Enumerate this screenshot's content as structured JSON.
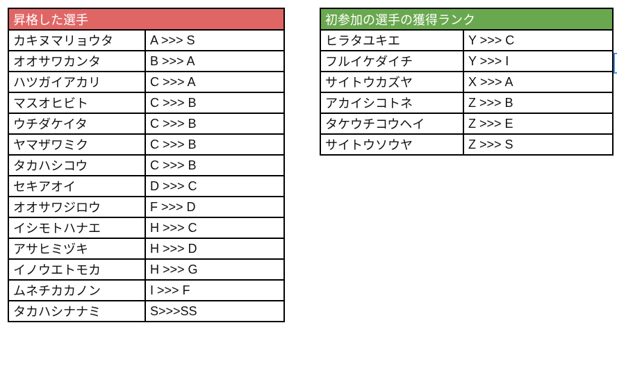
{
  "promoted": {
    "title": "昇格した選手",
    "header_color": "#e06666",
    "rows": [
      [
        "カキヌマリョウタ",
        "A >>> S"
      ],
      [
        "オオサワカンタ",
        "B >>> A"
      ],
      [
        "ハツガイアカリ",
        "C >>> A"
      ],
      [
        "マスオヒビト",
        "C >>> B"
      ],
      [
        "ウチダケイタ",
        "C >>> B"
      ],
      [
        "ヤマザワミク",
        "C >>> B"
      ],
      [
        "タカハシコウ",
        "C >>> B"
      ],
      [
        "セキアオイ",
        "D >>> C"
      ],
      [
        "オオサワジロウ",
        "F >>> D"
      ],
      [
        "イシモトハナエ",
        "H >>> C"
      ],
      [
        "アサヒミヅキ",
        "H >>> D"
      ],
      [
        "イノウエトモカ",
        "H >>> G"
      ],
      [
        "ムネチカカノン",
        "I >>> F"
      ],
      [
        "タカハシナナミ",
        "S>>>SS"
      ]
    ]
  },
  "newcomers": {
    "title": "初参加の選手の獲得ランク",
    "header_color": "#6aa84f",
    "rows": [
      [
        "ヒラタユキエ",
        "Y >>> C"
      ],
      [
        "フルイケダイチ",
        "Y >>> I"
      ],
      [
        "サイトウカズヤ",
        "X >>> A"
      ],
      [
        "アカイシコトネ",
        "Z >>> B"
      ],
      [
        "タケウチコウヘイ",
        "Z >>> E"
      ],
      [
        "サイトウソウヤ",
        "Z >>> S"
      ]
    ]
  }
}
